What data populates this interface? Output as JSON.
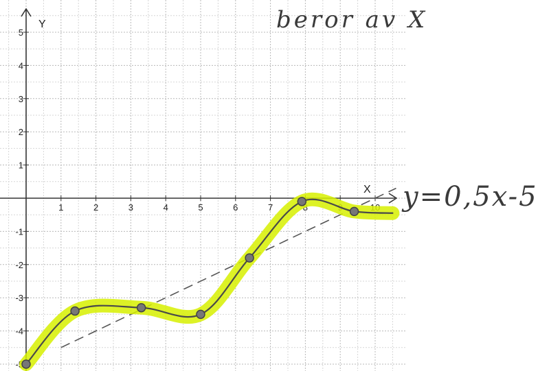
{
  "chart_data": {
    "type": "line",
    "x_axis_label": "X",
    "y_axis_label": "Y",
    "x_ticks": [
      1,
      2,
      3,
      4,
      5,
      6,
      7,
      8,
      9,
      10
    ],
    "y_ticks": [
      -5,
      -4,
      -3,
      -2,
      -1,
      1,
      2,
      3,
      4,
      5
    ],
    "xlim": [
      0,
      10.5
    ],
    "ylim": [
      -5,
      5
    ],
    "grid": true,
    "series": [
      {
        "color": "#4a4a4a",
        "highlight_color": "#d7f000",
        "style": "solid",
        "points": [
          {
            "x": 0,
            "y": -5
          },
          {
            "x": 1.4,
            "y": -3.4
          },
          {
            "x": 3.3,
            "y": -3.3
          },
          {
            "x": 5,
            "y": -3.5
          },
          {
            "x": 6.4,
            "y": -1.8
          },
          {
            "x": 7.9,
            "y": -0.1
          },
          {
            "x": 9.4,
            "y": -0.4
          },
          {
            "x": 10.5,
            "y": -0.45
          }
        ],
        "markers": [
          {
            "x": 0,
            "y": -5
          },
          {
            "x": 1.4,
            "y": -3.4
          },
          {
            "x": 3.3,
            "y": -3.3
          },
          {
            "x": 5,
            "y": -3.5
          },
          {
            "x": 6.4,
            "y": -1.8
          },
          {
            "x": 7.9,
            "y": -0.1
          },
          {
            "x": 9.4,
            "y": -0.4
          }
        ]
      },
      {
        "color": "#555555",
        "style": "dashed",
        "points": [
          {
            "x": 1,
            "y": -4.5
          },
          {
            "x": 10.6,
            "y": 0.3
          }
        ]
      }
    ],
    "annotations": [
      {
        "text": "beror av X",
        "kind": "handwritten"
      },
      {
        "text": "y=0,5x-5",
        "kind": "handwritten"
      }
    ]
  }
}
